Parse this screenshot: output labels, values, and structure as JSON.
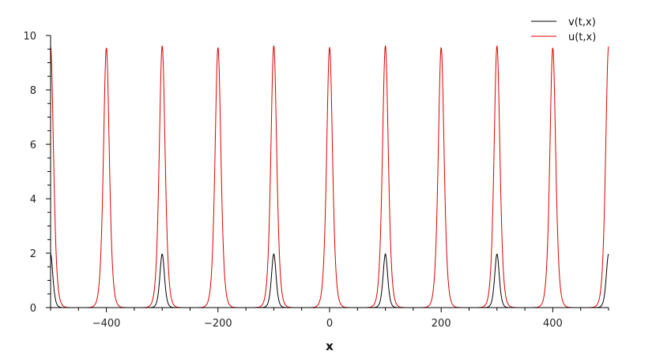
{
  "chart_data": {
    "type": "line",
    "title": "",
    "xlabel": "x",
    "ylabel": "",
    "xlim": [
      -500,
      500
    ],
    "ylim": [
      0,
      10
    ],
    "xticks": [
      -400,
      -200,
      0,
      200,
      400
    ],
    "xtick_labels": [
      "−400",
      "−200",
      "0",
      "200",
      "400"
    ],
    "yticks": [
      0,
      2,
      4,
      6,
      8,
      10
    ],
    "ytick_labels": [
      "0",
      "2",
      "4",
      "6",
      "8",
      "10"
    ],
    "grid": false,
    "legend_position": "top-right",
    "series": [
      {
        "name": "v(t,x)",
        "color": "#000000",
        "shape": "sech2 pulse train",
        "peak_x": [
          -500,
          -300,
          -100,
          100,
          300,
          500
        ],
        "peak_y": [
          1.97,
          1.97,
          1.97,
          1.97,
          1.97,
          1.97
        ],
        "half_width": 5.5
      },
      {
        "name": "u(t,x)",
        "color": "#dd0000",
        "shape": "sech2 pulse train",
        "peak_x": [
          -500,
          -400,
          -300,
          -200,
          -100,
          0,
          100,
          200,
          300,
          400,
          500
        ],
        "peak_y": [
          9.6,
          9.55,
          9.62,
          9.56,
          9.63,
          9.57,
          9.63,
          9.56,
          9.62,
          9.55,
          9.6
        ],
        "half_width": 7
      }
    ]
  }
}
